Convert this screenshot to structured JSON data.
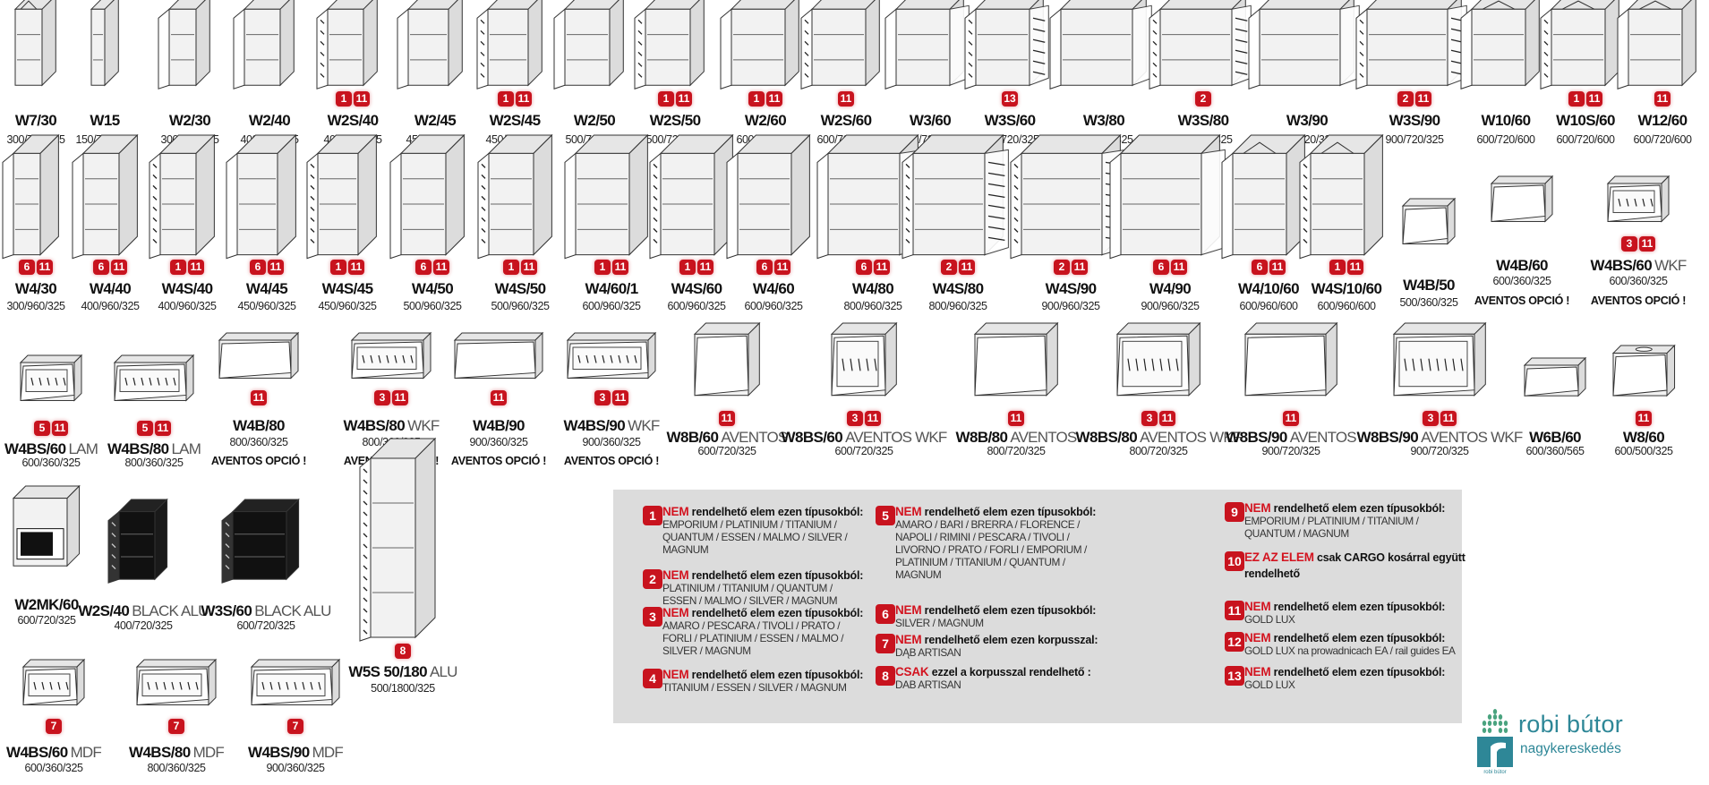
{
  "colors": {
    "badge": "#c8131e",
    "note_box": "#dcdcdc",
    "brand": "#2e8797"
  },
  "rows": [
    [
      {
        "name": "W7/30",
        "dims": "300/720/325",
        "badges": [],
        "icon": "corner-open-shelf-cabinet"
      },
      {
        "name": "W15",
        "dims": "150/720/325",
        "badges": [],
        "icon": "open-shelf-cabinet"
      },
      {
        "name": "W2/30",
        "dims": "300/720/325",
        "badges": [],
        "icon": "door-cabinet"
      },
      {
        "name": "W2/40",
        "dims": "400/720/325",
        "badges": [],
        "icon": "door-cabinet"
      },
      {
        "name": "W2S/40",
        "dims": "400/720/325",
        "badges": [
          "1",
          "11"
        ],
        "icon": "glass-door-cabinet"
      },
      {
        "name": "W2/45",
        "dims": "450/720/325",
        "badges": [],
        "icon": "door-cabinet"
      },
      {
        "name": "W2S/45",
        "dims": "450/720/325",
        "badges": [
          "1",
          "11"
        ],
        "icon": "glass-door-cabinet"
      },
      {
        "name": "W2/50",
        "dims": "500/720/325",
        "badges": [],
        "icon": "door-cabinet"
      },
      {
        "name": "W2S/50",
        "dims": "500/720/325",
        "badges": [
          "1",
          "11"
        ],
        "icon": "glass-door-cabinet"
      },
      {
        "name": "W2/60",
        "dims": "600/720/325",
        "badges": [
          "1",
          "11"
        ],
        "icon": "door-cabinet"
      },
      {
        "name": "W2S/60",
        "dims": "600/720/325",
        "badges": [
          "11"
        ],
        "icon": "glass-door-cabinet"
      },
      {
        "name": "W3/60",
        "dims": "600/720/325",
        "badges": [],
        "icon": "double-door-cabinet"
      },
      {
        "name": "W3S/60",
        "dims": "600/720/325",
        "badges": [
          "13"
        ],
        "icon": "double-glass-door-cabinet"
      },
      {
        "name": "W3/80",
        "dims": "800/720/325",
        "badges": [],
        "icon": "double-door-cabinet"
      },
      {
        "name": "W3S/80",
        "dims": "800/720/325",
        "badges": [
          "2"
        ],
        "icon": "double-glass-door-cabinet"
      },
      {
        "name": "W3/90",
        "dims": "900/720/325",
        "badges": [],
        "icon": "double-door-cabinet"
      },
      {
        "name": "W3S/90",
        "dims": "900/720/325",
        "badges": [
          "2",
          "11"
        ],
        "icon": "double-glass-door-cabinet"
      },
      {
        "name": "W10/60",
        "dims": "600/720/600",
        "badges": [],
        "icon": "corner-cabinet"
      },
      {
        "name": "W10S/60",
        "dims": "600/720/600",
        "badges": [
          "1",
          "11"
        ],
        "icon": "corner-glass-cabinet"
      },
      {
        "name": "W12/60",
        "dims": "600/720/600",
        "badges": [
          "11"
        ],
        "icon": "corner-cabinet"
      }
    ],
    [
      {
        "name": "W4/30",
        "dims": "300/960/325",
        "badges": [
          "6",
          "11"
        ],
        "icon": "door-cabinet"
      },
      {
        "name": "W4/40",
        "dims": "400/960/325",
        "badges": [
          "6",
          "11"
        ],
        "icon": "door-cabinet"
      },
      {
        "name": "W4S/40",
        "dims": "400/960/325",
        "badges": [
          "1",
          "11"
        ],
        "icon": "glass-door-cabinet"
      },
      {
        "name": "W4/45",
        "dims": "450/960/325",
        "badges": [
          "6",
          "11"
        ],
        "icon": "door-cabinet"
      },
      {
        "name": "W4S/45",
        "dims": "450/960/325",
        "badges": [
          "1",
          "11"
        ],
        "icon": "glass-door-cabinet"
      },
      {
        "name": "W4/50",
        "dims": "500/960/325",
        "badges": [
          "6",
          "11"
        ],
        "icon": "door-cabinet"
      },
      {
        "name": "W4S/50",
        "dims": "500/960/325",
        "badges": [
          "1",
          "11"
        ],
        "icon": "glass-door-cabinet"
      },
      {
        "name": "W4/60/1",
        "dims": "600/960/325",
        "badges": [
          "1",
          "11"
        ],
        "icon": "door-cabinet"
      },
      {
        "name": "W4S/60",
        "dims": "600/960/325",
        "badges": [
          "1",
          "11"
        ],
        "icon": "glass-door-cabinet"
      },
      {
        "name": "W4/60",
        "dims": "600/960/325",
        "badges": [
          "6",
          "11"
        ],
        "icon": "door-cabinet"
      },
      {
        "name": "W4/80",
        "dims": "800/960/325",
        "badges": [
          "6",
          "11"
        ],
        "icon": "double-door-cabinet"
      },
      {
        "name": "W4S/80",
        "dims": "800/960/325",
        "badges": [
          "2",
          "11"
        ],
        "icon": "double-glass-door-cabinet"
      },
      {
        "name": "W4S/90",
        "dims": "900/960/325",
        "badges": [
          "2",
          "11"
        ],
        "icon": "double-glass-door-cabinet"
      },
      {
        "name": "W4/90",
        "dims": "900/960/325",
        "badges": [
          "6",
          "11"
        ],
        "icon": "double-door-cabinet"
      },
      {
        "name": "W4/10/60",
        "dims": "600/960/600",
        "badges": [
          "6",
          "11"
        ],
        "icon": "corner-cabinet"
      },
      {
        "name": "W4S/10/60",
        "dims": "600/960/600",
        "badges": [
          "1",
          "11"
        ],
        "icon": "corner-glass-cabinet"
      },
      {
        "name": "W4B/50",
        "dims": "500/360/325",
        "badges": [],
        "icon": "flap-cabinet"
      },
      {
        "name": "W4B/60",
        "dims": "600/360/325",
        "badges": [],
        "note": "AVENTOS OPCIÓ !",
        "icon": "flap-cabinet"
      },
      {
        "name": "W4BS/60",
        "suffix": "WKF",
        "dims": "600/360/325",
        "badges": [
          "3",
          "11"
        ],
        "note": "AVENTOS OPCIÓ !",
        "icon": "glass-flap-cabinet"
      }
    ],
    [
      {
        "name": "W4BS/60",
        "suffix": "LAM",
        "dims": "600/360/325",
        "badges": [
          "5",
          "11"
        ],
        "icon": "glass-flap-cabinet"
      },
      {
        "name": "W4BS/80",
        "suffix": "LAM",
        "dims": "800/360/325",
        "badges": [
          "5",
          "11"
        ],
        "icon": "glass-flap-cabinet"
      },
      {
        "name": "W4B/80",
        "dims": "800/360/325",
        "badges": [
          "11"
        ],
        "note": "AVENTOS OPCIÓ !",
        "icon": "flap-cabinet"
      },
      {
        "name": "W4BS/80",
        "suffix": "WKF",
        "dims": "800/360/325",
        "badges": [
          "3",
          "11"
        ],
        "note": "AVENTOS OPCIÓ !",
        "icon": "glass-flap-cabinet"
      },
      {
        "name": "W4B/90",
        "dims": "900/360/325",
        "badges": [
          "11"
        ],
        "note": "AVENTOS OPCIÓ !",
        "icon": "flap-cabinet"
      },
      {
        "name": "W4BS/90",
        "suffix": "WKF",
        "dims": "900/360/325",
        "badges": [
          "3",
          "11"
        ],
        "note": "AVENTOS OPCIÓ !",
        "icon": "glass-flap-cabinet"
      },
      {
        "name": "W8B/60",
        "suffix": "AVENTOS",
        "dims": "600/720/325",
        "badges": [
          "11"
        ],
        "icon": "lift-flap-cabinet"
      },
      {
        "name": "W8BS/60",
        "suffix": "AVENTOS WKF",
        "dims": "600/720/325",
        "badges": [
          "3",
          "11"
        ],
        "icon": "glass-lift-flap-cabinet"
      },
      {
        "name": "W8B/80",
        "suffix": "AVENTOS",
        "dims": "800/720/325",
        "badges": [
          "11"
        ],
        "icon": "lift-flap-cabinet"
      },
      {
        "name": "W8BS/80",
        "suffix": "AVENTOS WKF",
        "dims": "800/720/325",
        "badges": [
          "3",
          "11"
        ],
        "icon": "glass-lift-flap-cabinet"
      },
      {
        "name": "W8BS/90",
        "suffix": "AVENTOS",
        "dims": "900/720/325",
        "badges": [
          "11"
        ],
        "icon": "lift-flap-cabinet"
      },
      {
        "name": "W8BS/90",
        "suffix": "AVENTOS WKF",
        "dims": "900/720/325",
        "badges": [
          "3",
          "11"
        ],
        "icon": "glass-lift-flap-cabinet"
      },
      {
        "name": "W6B/60",
        "dims": "600/360/565",
        "badges": [],
        "icon": "flap-cabinet"
      },
      {
        "name": "W8/60",
        "dims": "600/500/325",
        "badges": [
          "11"
        ],
        "icon": "hood-cabinet"
      }
    ],
    [
      {
        "name": "W2MK/60",
        "dims": "600/720/325",
        "badges": [],
        "icon": "microwave-cabinet"
      },
      {
        "name": "W2S/40",
        "suffix": "BLACK ALU",
        "dims": "400/720/325",
        "badges": [],
        "icon": "black-glass-door-cabinet"
      },
      {
        "name": "W3S/60",
        "suffix": "BLACK ALU",
        "dims": "600/720/325",
        "badges": [],
        "icon": "black-glass-door-cabinet"
      },
      {
        "name": "W5S 50/180",
        "suffix": "ALU",
        "dims": "500/1800/325",
        "badges": [
          "8"
        ],
        "icon": "tall-glass-cabinet"
      },
      {
        "name": "W4BS/60",
        "suffix": "MDF",
        "dims": "600/360/325",
        "badges": [
          "7"
        ],
        "icon": "glass-flap-cabinet"
      },
      {
        "name": "W4BS/80",
        "suffix": "MDF",
        "dims": "800/360/325",
        "badges": [
          "7"
        ],
        "icon": "glass-flap-cabinet"
      },
      {
        "name": "W4BS/90",
        "suffix": "MDF",
        "dims": "900/360/325",
        "badges": [
          "7"
        ],
        "icon": "glass-flap-cabinet"
      }
    ]
  ],
  "notes": [
    {
      "num": "1",
      "highlight": "NEM",
      "text": " rendelhető elem ezen típusokból:",
      "lines": [
        "EMPORIUM / PLATINIUM / TITANIUM /",
        "QUANTUM / ESSEN / MALMO / SILVER /",
        "MAGNUM"
      ]
    },
    {
      "num": "2",
      "highlight": "NEM",
      "text": " rendelhető elem ezen típusokból:",
      "lines": [
        "PLATINIUM / TITANIUM / QUANTUM /",
        "ESSEN / MALMO / SILVER / MAGNUM"
      ]
    },
    {
      "num": "3",
      "highlight": "NEM",
      "text": " rendelhető elem ezen típusokból:",
      "lines": [
        "AMARO / PESCARA / TIVOLI / PRATO /",
        "FORLI / PLATINIUM / ESSEN / MALMO /",
        "SILVER / MAGNUM"
      ]
    },
    {
      "num": "4",
      "highlight": "NEM",
      "text": " rendelhető elem ezen típusokból:",
      "lines": [
        "TITANIUM /  ESSEN / SILVER / MAGNUM"
      ]
    },
    {
      "num": "5",
      "highlight": "NEM",
      "text": " rendelhető elem ezen típusokból:",
      "lines": [
        "AMARO / BARI / BRERRA / FLORENCE /",
        "NAPOLI / RIMINI / PESCARA / TIVOLI /",
        "LIVORNO / PRATO / FORLI / EMPORIUM /",
        "PLATINIUM / TITANIUM / QUANTUM /",
        "MAGNUM"
      ]
    },
    {
      "num": "6",
      "highlight": "NEM",
      "text": " rendelhető elem ezen típusokból:",
      "lines": [
        "SILVER / MAGNUM"
      ]
    },
    {
      "num": "7",
      "highlight": "NEM",
      "text": " rendelhető elem ezen korpusszal:",
      "lines": [
        "DĄB ARTISAN"
      ]
    },
    {
      "num": "8",
      "highlight": "CSAK",
      "text": " ezzel a korpusszal rendelhető :",
      "lines": [
        "DAB ARTISAN"
      ]
    },
    {
      "num": "9",
      "highlight": "NEM",
      "text": " rendelhető elem ezen típusokból:",
      "lines": [
        "EMPORIUM / PLATINIUM / TITANIUM /",
        "QUANTUM / MAGNUM"
      ]
    },
    {
      "num": "10",
      "highlight": "EZ AZ ELEM",
      "text": " csak CARGO kosárral  együtt",
      "text2": "rendelhető",
      "lines": []
    },
    {
      "num": "11",
      "highlight": "NEM",
      "text": " rendelhető elem ezen típusokból:",
      "lines": [
        "GOLD LUX"
      ]
    },
    {
      "num": "12",
      "highlight": "NEM",
      "text": " rendelhető elem ezen típusokból:",
      "lines": [
        "GOLD LUX na prowadnicach EA / rail guides EA"
      ]
    },
    {
      "num": "13",
      "highlight": "NEM",
      "text": " rendelhető elem ezen típusokból:",
      "lines": [
        "GOLD LUX"
      ]
    }
  ],
  "logo": {
    "name": "robi bútor",
    "subtitle": "nagykereskedés",
    "mark_text": "robi bútor"
  }
}
